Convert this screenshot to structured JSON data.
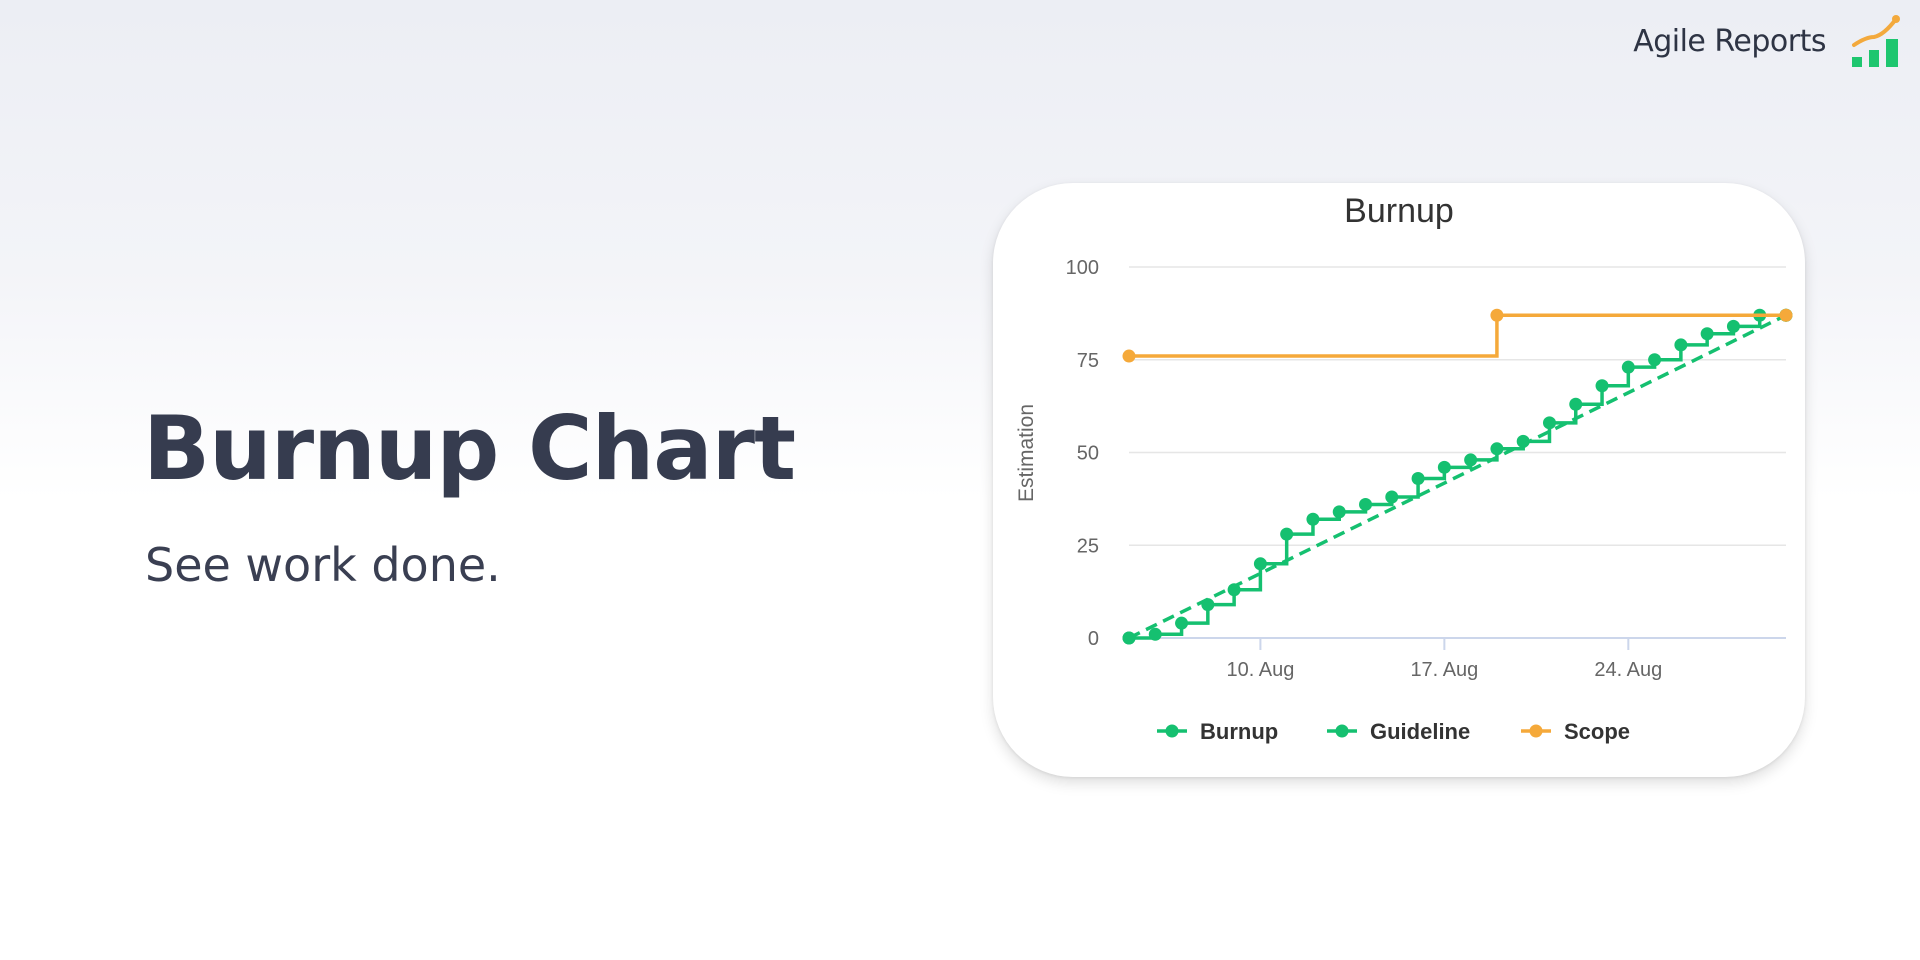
{
  "brand": {
    "name": "Agile Reports",
    "logo_icon": "chart-growth-icon",
    "bar_color": "#1ec66f",
    "line_color": "#f3a93c"
  },
  "hero": {
    "title": "Burnup Chart",
    "subtitle": "See work done."
  },
  "chart_data": {
    "type": "line",
    "title": "Burnup",
    "xlabel": "",
    "ylabel": "Estimation",
    "x_ticks": [
      "10. Aug",
      "17. Aug",
      "24. Aug"
    ],
    "x_range": [
      "2019-08-05",
      "2019-08-30"
    ],
    "ylim": [
      0,
      100
    ],
    "y_ticks": [
      0,
      25,
      50,
      75,
      100
    ],
    "grid": true,
    "legend_position": "bottom-center",
    "series": [
      {
        "name": "Burnup",
        "style": "step-solid",
        "color": "#15c070",
        "points": [
          [
            "2019-08-05",
            0
          ],
          [
            "2019-08-06",
            1
          ],
          [
            "2019-08-07",
            4
          ],
          [
            "2019-08-08",
            9
          ],
          [
            "2019-08-09",
            13
          ],
          [
            "2019-08-10",
            20
          ],
          [
            "2019-08-11",
            28
          ],
          [
            "2019-08-12",
            32
          ],
          [
            "2019-08-13",
            34
          ],
          [
            "2019-08-14",
            36
          ],
          [
            "2019-08-15",
            38
          ],
          [
            "2019-08-16",
            43
          ],
          [
            "2019-08-17",
            46
          ],
          [
            "2019-08-18",
            48
          ],
          [
            "2019-08-19",
            51
          ],
          [
            "2019-08-20",
            53
          ],
          [
            "2019-08-21",
            58
          ],
          [
            "2019-08-22",
            63
          ],
          [
            "2019-08-23",
            68
          ],
          [
            "2019-08-24",
            73
          ],
          [
            "2019-08-25",
            75
          ],
          [
            "2019-08-26",
            79
          ],
          [
            "2019-08-27",
            82
          ],
          [
            "2019-08-28",
            84
          ],
          [
            "2019-08-29",
            87
          ],
          [
            "2019-08-30",
            87
          ]
        ]
      },
      {
        "name": "Guideline",
        "style": "dashed",
        "color": "#15c070",
        "points": [
          [
            "2019-08-05",
            0
          ],
          [
            "2019-08-30",
            87
          ]
        ]
      },
      {
        "name": "Scope",
        "style": "step-solid",
        "color": "#f5a93a",
        "points": [
          [
            "2019-08-05",
            76
          ],
          [
            "2019-08-19",
            87
          ],
          [
            "2019-08-30",
            87
          ]
        ]
      }
    ]
  }
}
